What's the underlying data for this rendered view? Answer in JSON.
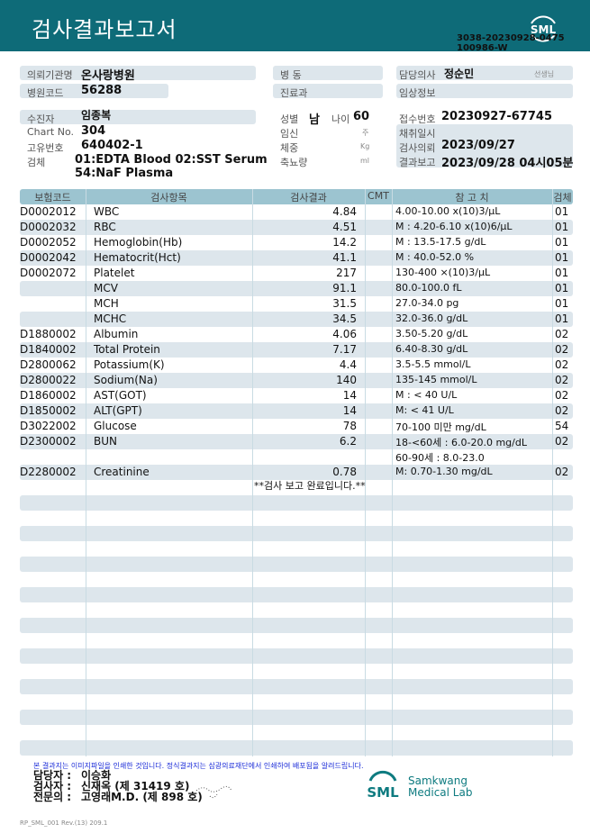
{
  "header": {
    "title": "검사결과보고서",
    "logo": "SML",
    "doc_no": "3038-20230928-0475",
    "doc_sub": "100986-W"
  },
  "info": {
    "institution_label": "의뢰기관명",
    "institution": "온사랑병원",
    "hospital_code_label": "병원코드",
    "hospital_code": "56288",
    "ward_label": "병  동",
    "dept_label": "진료과",
    "doctor_label": "담당의사",
    "doctor": "정순민",
    "doctor_suffix": "선생님",
    "clinical_label": "임상정보",
    "patient_label": "수진자",
    "patient": "임종복",
    "chart_label": "Chart No.",
    "chart": "304",
    "id_label": "고유번호",
    "id": "640402-1",
    "specimen_label": "검체",
    "specimen1": "01:EDTA Blood 02:SST Serum",
    "specimen2": "54:NaF Plasma",
    "sex_label": "성별",
    "sex": "남",
    "age_label": "나이",
    "age": "60",
    "preg_label": "임신",
    "preg_unit": "주",
    "weight_label": "체중",
    "weight_unit": "Kg",
    "urine_label": "축뇨량",
    "urine_unit": "ml",
    "receipt_label": "접수번호",
    "receipt": "20230927-67745",
    "collect_label": "채취일시",
    "request_label": "검사의뢰",
    "request": "2023/09/27",
    "report_label": "결과보고",
    "report": "2023/09/28 04시05분"
  },
  "table": {
    "headers": [
      "보험코드",
      "검사항목",
      "검사결과",
      "CMT",
      "참 고 치",
      "검체"
    ],
    "rows": [
      [
        "D0002012",
        "WBC",
        "4.84",
        "",
        "4.00-10.00 x(10)3/μL",
        "01"
      ],
      [
        "D0002032",
        "RBC",
        "4.51",
        "",
        "M : 4.20-6.10 x(10)6/μL",
        "01"
      ],
      [
        "D0002052",
        "Hemoglobin(Hb)",
        "14.2",
        "",
        "M : 13.5-17.5 g/dL",
        "01"
      ],
      [
        "D0002042",
        "Hematocrit(Hct)",
        "41.1",
        "",
        "M : 40.0-52.0 %",
        "01"
      ],
      [
        "D0002072",
        "Platelet",
        "217",
        "",
        "130-400 ×(10)3/μL",
        "01"
      ],
      [
        "",
        "MCV",
        "91.1",
        "",
        "80.0-100.0 fL",
        "01"
      ],
      [
        "",
        "MCH",
        "31.5",
        "",
        "27.0-34.0 pg",
        "01"
      ],
      [
        "",
        "MCHC",
        "34.5",
        "",
        "32.0-36.0 g/dL",
        "01"
      ],
      [
        "D1880002",
        "Albumin",
        "4.06",
        "",
        "3.50-5.20 g/dL",
        "02"
      ],
      [
        "D1840002",
        "Total Protein",
        "7.17",
        "",
        "6.40-8.30 g/dL",
        "02"
      ],
      [
        "D2800062",
        "Potassium(K)",
        "4.4",
        "",
        "3.5-5.5 mmol/L",
        "02"
      ],
      [
        "D2800022",
        "Sodium(Na)",
        "140",
        "",
        "135-145 mmol/L",
        "02"
      ],
      [
        "D1860002",
        "AST(GOT)",
        "14",
        "",
        "M : < 40 U/L",
        "02"
      ],
      [
        "D1850002",
        "ALT(GPT)",
        "14",
        "",
        "M: < 41 U/L",
        "02"
      ],
      [
        "D3022002",
        "Glucose",
        "78",
        "",
        "70-100 미만 mg/dL",
        "54"
      ],
      [
        "D2300002",
        "BUN",
        "6.2",
        "",
        "18-<60세 : 6.0-20.0 mg/dL",
        "02"
      ],
      [
        "",
        "",
        "",
        "",
        "60-90세 : 8.0-23.0",
        ""
      ],
      [
        "D2280002",
        "Creatinine",
        "0.78",
        "",
        "M: 0.70-1.30 mg/dL",
        "02"
      ]
    ],
    "completion": "**검사  보고  완료입니다.**"
  },
  "footer": {
    "notice": "본 결과지는 이미지파일을 인쇄한 것입니다. 정식결과지는 삼광의료재단에서 인쇄하여 배포됨을 알려드립니다.",
    "manager_label": "담당자 :",
    "manager": "이승화",
    "tester_label": "검사자 :",
    "tester": "신재옥 (제 31419 호)",
    "specialist_label": "전문의 :",
    "specialist": "고영래M.D. (제 898 호)",
    "lab_name1": "Samkwang",
    "lab_name2": "Medical Lab",
    "form_no": "RP_SML_001 Rev.(13) 209.1"
  }
}
